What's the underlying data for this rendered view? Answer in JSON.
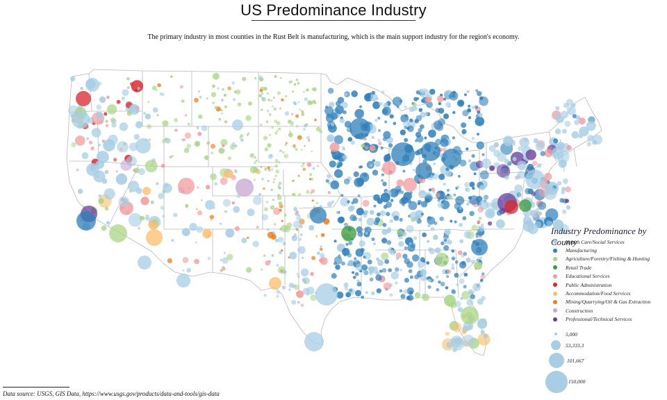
{
  "header": {
    "title": "US Predominance Industry",
    "subtitle": "The primary industry in most counties in the Rust Belt is manufacturing, which is the main support industry for the region's economy."
  },
  "legend": {
    "title": "Industry Predominance by County",
    "items": [
      {
        "label": "Health Care/Social Services",
        "color": "#a6cde4"
      },
      {
        "label": "Manufacturing",
        "color": "#2f7fba"
      },
      {
        "label": "Agriculture/Forestry/Fishing & Hunting",
        "color": "#a9d585"
      },
      {
        "label": "Retail Trade",
        "color": "#3a9a3c"
      },
      {
        "label": "Educational Services",
        "color": "#f29b9e"
      },
      {
        "label": "Public Administration",
        "color": "#d7252b"
      },
      {
        "label": "Accommodation/Food Services",
        "color": "#fbbd6b"
      },
      {
        "label": "Mining/Quarrying/Oil & Gas Extraction",
        "color": "#f07e18"
      },
      {
        "label": "Construction",
        "color": "#c5a6d2"
      },
      {
        "label": "Professional/Technical Services",
        "color": "#6a3d9a"
      }
    ],
    "size_legend": [
      {
        "label": "5,000",
        "value": 5000
      },
      {
        "label": "53,333.3",
        "value": 53333.3
      },
      {
        "label": "101,667",
        "value": 101667
      },
      {
        "label": "150,000",
        "value": 150000
      }
    ]
  },
  "source": "Data source: USGS, GIS Data, https://www.usgs.gov/products/data-and-tools/gis-data"
}
